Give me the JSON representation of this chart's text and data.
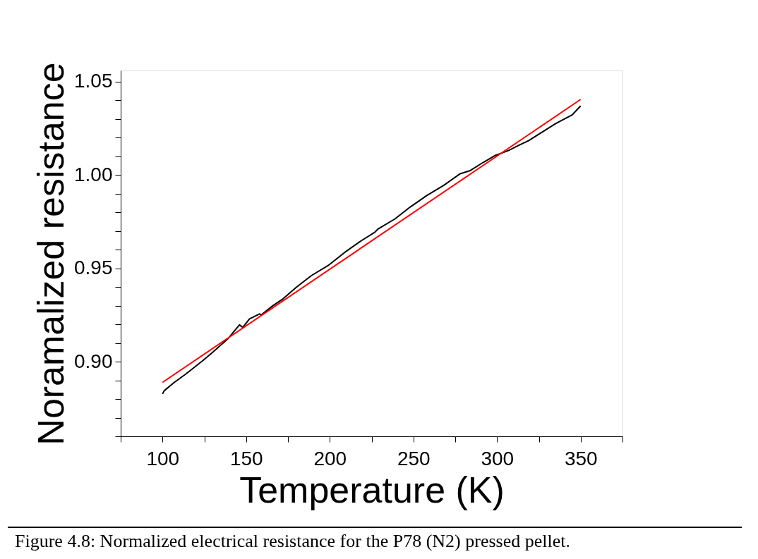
{
  "chart_data": {
    "type": "line",
    "xlabel": "Temperature (K)",
    "ylabel": "Noramalized resistance",
    "annotations": [
      "Figure 4.8: Normalized electrical resistance for the P78 (N2) pressed pellet."
    ],
    "xlim": [
      75,
      375
    ],
    "ylim": [
      0.86,
      1.056
    ],
    "xticks": [
      {
        "value": 75,
        "label": null
      },
      100,
      {
        "value": 125,
        "label": null
      },
      150,
      {
        "value": 175,
        "label": null
      },
      200,
      {
        "value": 225,
        "label": null
      },
      250,
      {
        "value": 275,
        "label": null
      },
      300,
      {
        "value": 325,
        "label": null
      },
      350,
      {
        "value": 375,
        "label": null
      }
    ],
    "yticks": [
      {
        "value": 0.86,
        "label": null
      },
      {
        "value": 0.87,
        "label": null
      },
      {
        "value": 0.88,
        "label": null
      },
      {
        "value": 0.89,
        "label": null
      },
      {
        "value": 0.9,
        "label": "0.90"
      },
      {
        "value": 0.91,
        "label": null
      },
      {
        "value": 0.92,
        "label": null
      },
      {
        "value": 0.93,
        "label": null
      },
      {
        "value": 0.94,
        "label": null
      },
      {
        "value": 0.95,
        "label": "0.95"
      },
      {
        "value": 0.96,
        "label": null
      },
      {
        "value": 0.97,
        "label": null
      },
      {
        "value": 0.98,
        "label": null
      },
      {
        "value": 0.99,
        "label": null
      },
      {
        "value": 1.0,
        "label": "1.00"
      },
      {
        "value": 1.01,
        "label": null
      },
      {
        "value": 1.02,
        "label": null
      },
      {
        "value": 1.03,
        "label": null
      },
      {
        "value": 1.04,
        "label": null
      },
      {
        "value": 1.05,
        "label": "1.05"
      }
    ],
    "grid": false,
    "marker": "none",
    "line_style": "solid",
    "series": [
      {
        "color": "#000000",
        "x": [
          100,
          101,
          107,
          114,
          124,
          130,
          139,
          146,
          148,
          152,
          158,
          159,
          166,
          172,
          180,
          189,
          199,
          209,
          219,
          227,
          229,
          239,
          248,
          258,
          268,
          278,
          284,
          292,
          299,
          307,
          313,
          319,
          327,
          335,
          345,
          350
        ],
        "values": [
          0.8827,
          0.8844,
          0.8889,
          0.8934,
          0.9005,
          0.905,
          0.9122,
          0.9197,
          0.9184,
          0.9229,
          0.9256,
          0.925,
          0.93,
          0.9336,
          0.9399,
          0.9461,
          0.9515,
          0.9586,
          0.9649,
          0.9694,
          0.9712,
          0.9765,
          0.9828,
          0.989,
          0.9944,
          1.0007,
          1.0024,
          1.0069,
          1.0105,
          1.0132,
          1.0159,
          1.0185,
          1.023,
          1.0275,
          1.0323,
          1.037
        ]
      },
      {
        "color": "#ff0000",
        "x": [
          100,
          350
        ],
        "values": [
          0.8889,
          1.0405
        ]
      }
    ]
  }
}
